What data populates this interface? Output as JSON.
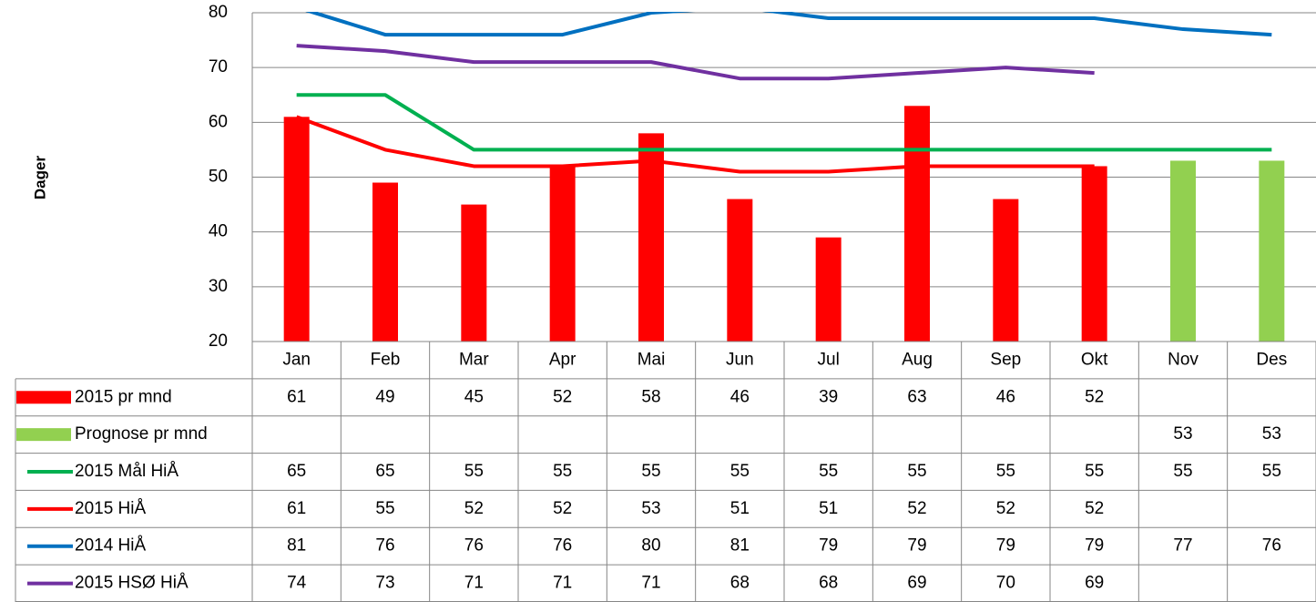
{
  "chart_data": {
    "type": "bar",
    "y_label": "Dager",
    "categories": [
      "Jan",
      "Feb",
      "Mar",
      "Apr",
      "Mai",
      "Jun",
      "Jul",
      "Aug",
      "Sep",
      "Okt",
      "Nov",
      "Des"
    ],
    "ylim": [
      20,
      80
    ],
    "yticks": [
      20,
      30,
      40,
      50,
      60,
      70,
      80
    ],
    "grid": true,
    "series": [
      {
        "name": "2015 pr mnd",
        "type": "bar",
        "color": "#ff0000",
        "values": [
          61,
          49,
          45,
          52,
          58,
          46,
          39,
          63,
          46,
          52,
          null,
          null
        ]
      },
      {
        "name": "Prognose pr mnd",
        "type": "bar",
        "color": "#92d050",
        "values": [
          null,
          null,
          null,
          null,
          null,
          null,
          null,
          null,
          null,
          null,
          53,
          53
        ]
      },
      {
        "name": "2015 Mål HiÅ",
        "type": "line",
        "color": "#00b050",
        "values": [
          65,
          65,
          55,
          55,
          55,
          55,
          55,
          55,
          55,
          55,
          55,
          55
        ]
      },
      {
        "name": "2015 HiÅ",
        "type": "line",
        "color": "#ff0000",
        "values": [
          61,
          55,
          52,
          52,
          53,
          51,
          51,
          52,
          52,
          52,
          null,
          null
        ]
      },
      {
        "name": "2014 HiÅ",
        "type": "line",
        "color": "#0070c0",
        "values": [
          81,
          76,
          76,
          76,
          80,
          81,
          79,
          79,
          79,
          79,
          77,
          76
        ]
      },
      {
        "name": "2015 HSØ HiÅ",
        "type": "line",
        "color": "#7030a0",
        "values": [
          74,
          73,
          71,
          71,
          71,
          68,
          68,
          69,
          70,
          69,
          null,
          null
        ]
      }
    ]
  }
}
